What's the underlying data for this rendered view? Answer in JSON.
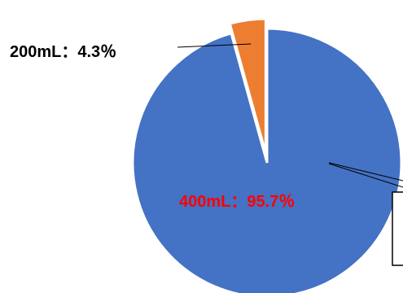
{
  "chart_data": {
    "type": "pie",
    "title": "",
    "slices": [
      {
        "label": "400mL",
        "value": 95.7,
        "display": "400mL：95.7％",
        "color": "#4472C4",
        "label_color": "#FF0000"
      },
      {
        "label": "200mL",
        "value": 4.3,
        "display": "200mL：4.3％",
        "color": "#ED7D31",
        "label_color": "#000000",
        "exploded": true
      }
    ],
    "legend": "none"
  }
}
